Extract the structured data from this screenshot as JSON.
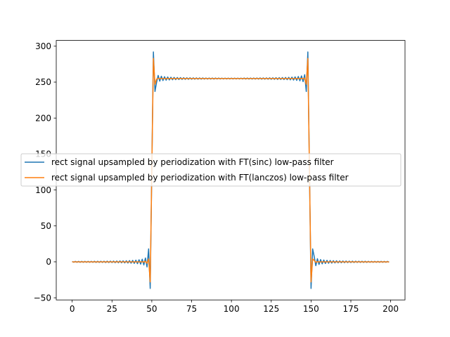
{
  "chart_data": {
    "type": "line",
    "title": "",
    "xlabel": "",
    "ylabel": "",
    "xlim": [
      -10,
      209
    ],
    "ylim": [
      -53,
      308
    ],
    "x_ticks": [
      0,
      25,
      50,
      75,
      100,
      125,
      150,
      175,
      200
    ],
    "y_ticks": [
      -50,
      0,
      50,
      100,
      150,
      200,
      250,
      300
    ],
    "grid": false,
    "legend_position": "center-left",
    "signal": {
      "n_points": 200,
      "rect_start": 50,
      "rect_end": 150,
      "high_level": 255,
      "low_level": 0
    },
    "series": [
      {
        "name": "rect signal upsampled by periodization with FT(sinc) low-pass filter",
        "color": "#1f77b4",
        "filter": "sinc",
        "peak_max": 292,
        "peak_min": -37
      },
      {
        "name": "rect signal upsampled by periodization with FT(lanczos) low-pass filter",
        "color": "#ff7f0e",
        "filter": "lanczos",
        "peak_max": 283,
        "peak_min": -28
      }
    ]
  }
}
